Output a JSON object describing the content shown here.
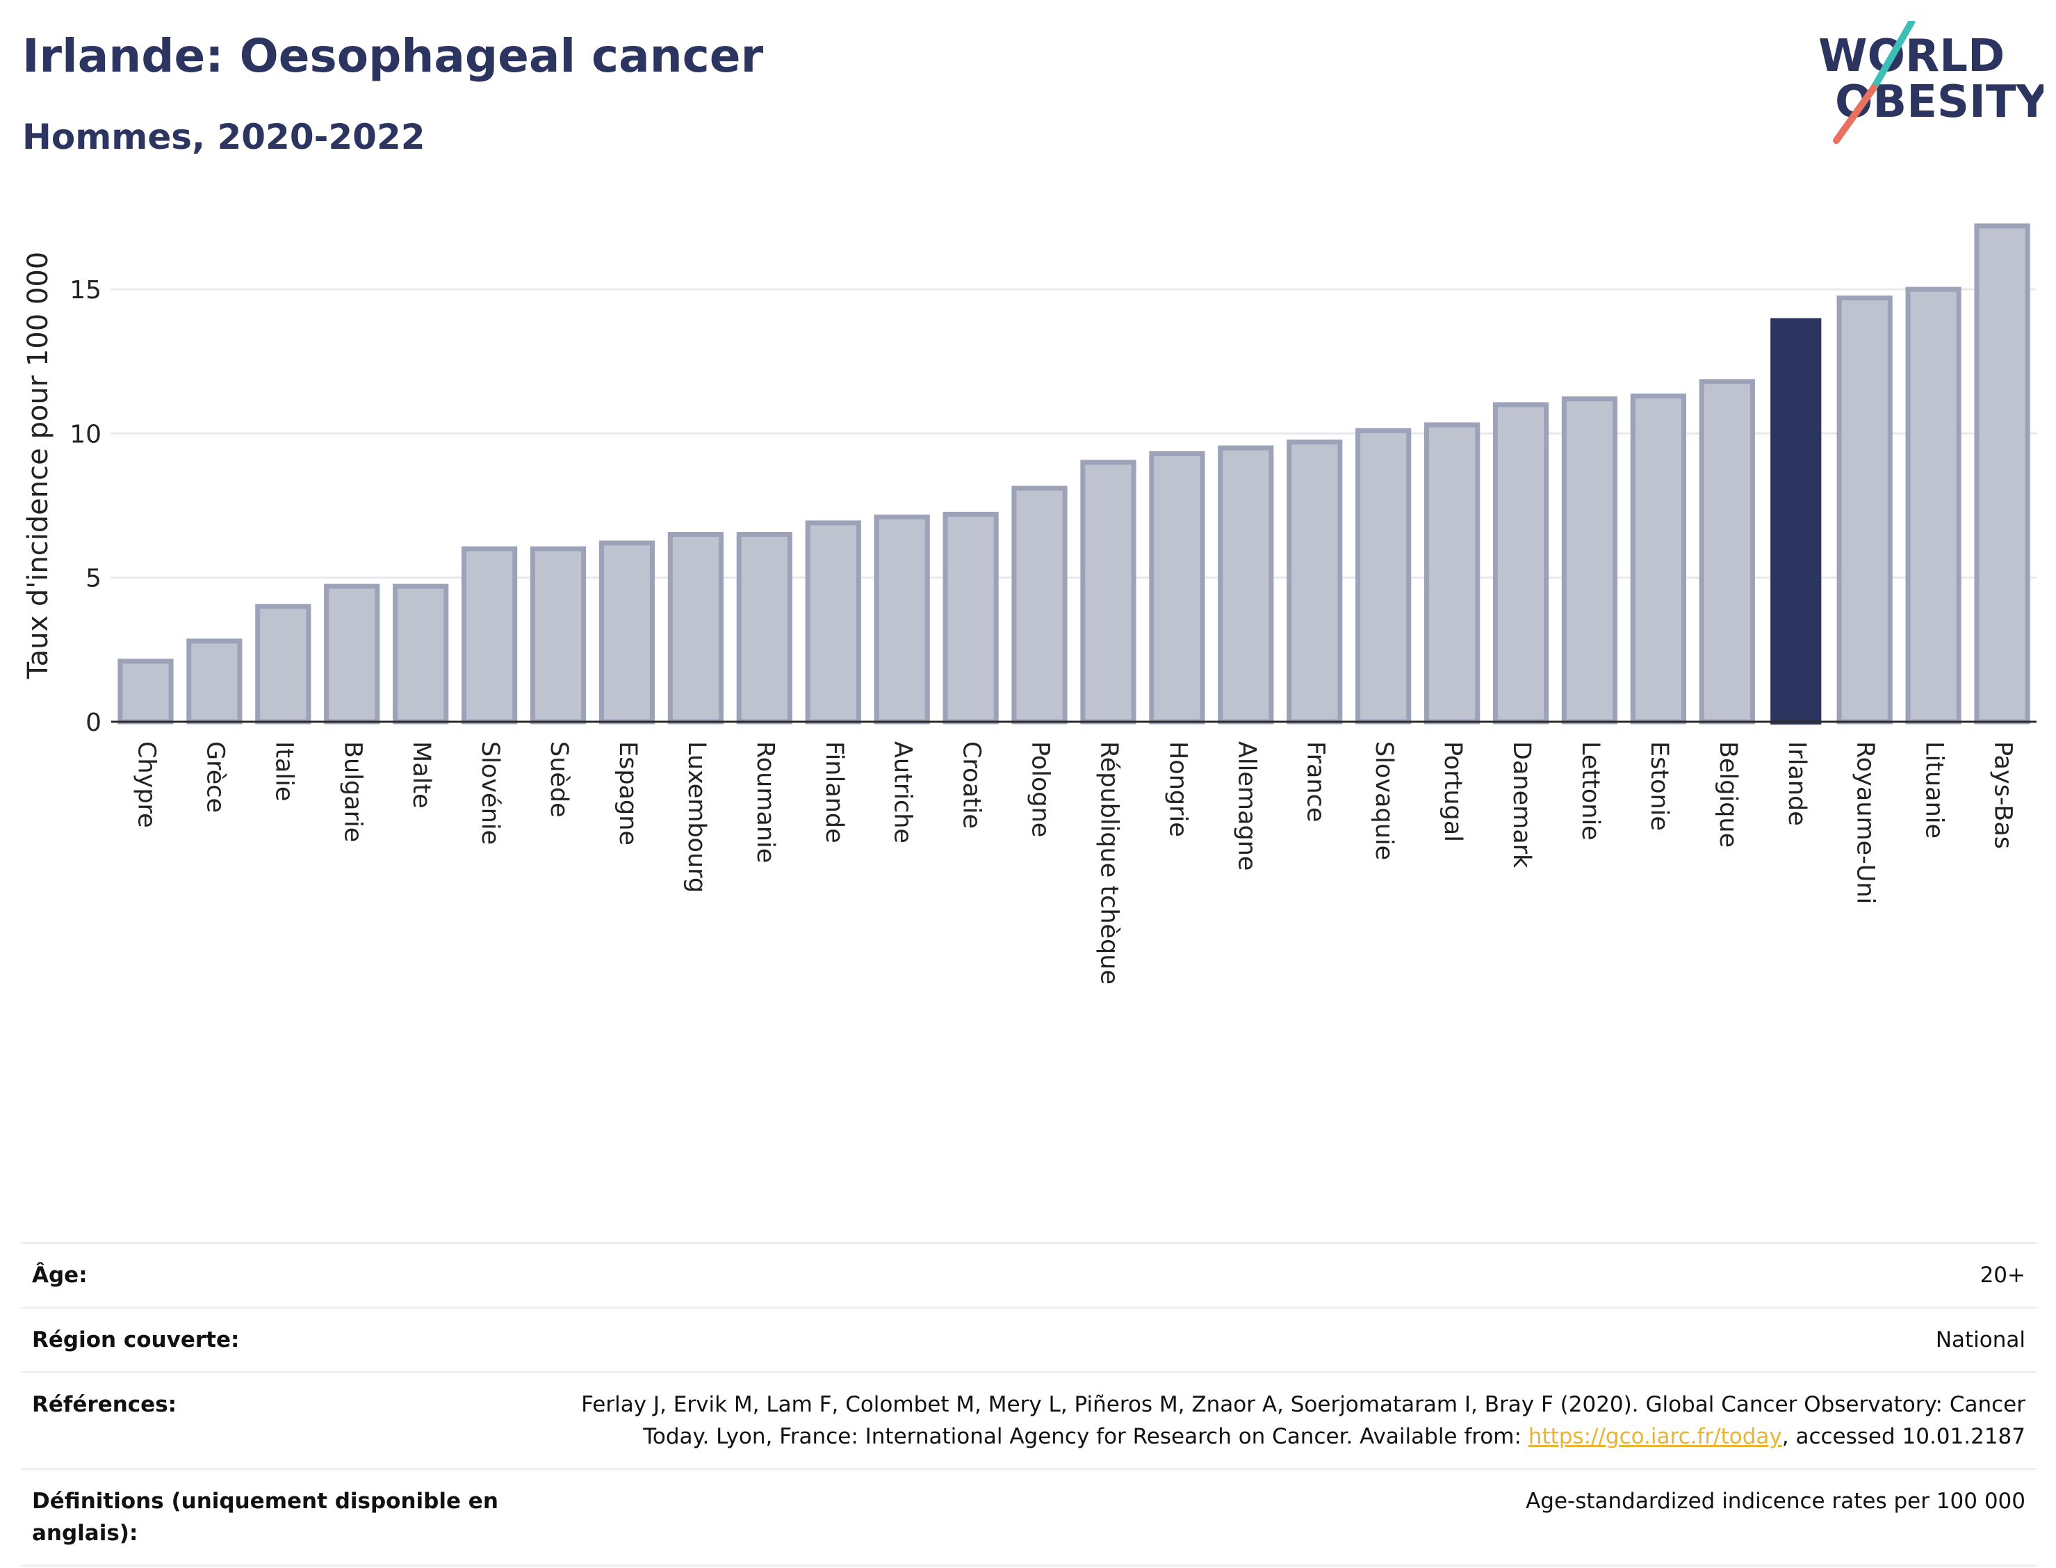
{
  "title": "Irlande: Oesophageal cancer",
  "subtitle": "Hommes, 2020-2022",
  "logo": {
    "line1": "WORLD",
    "line2": "OBESITY"
  },
  "colors": {
    "highlight": "#2b3560",
    "bar_fill": "#bfc3d0",
    "bar_stroke": "#9ca2b8",
    "grid": "#e8e9ee",
    "accent_teal": "#3dbfb8",
    "accent_coral": "#e8705f",
    "link": "#e8b432"
  },
  "chart_data": {
    "type": "bar",
    "title": "Irlande: Oesophageal cancer",
    "subtitle": "Hommes, 2020-2022",
    "ylabel": "Taux d'incidence pour 100 000",
    "xlabel": "",
    "ylim": [
      0,
      17.8
    ],
    "yticks": [
      0,
      5,
      10,
      15
    ],
    "grid": true,
    "highlight": "Irlande",
    "categories": [
      "Chypre",
      "Grèce",
      "Italie",
      "Bulgarie",
      "Malte",
      "Slovénie",
      "Suède",
      "Espagne",
      "Luxembourg",
      "Roumanie",
      "Finlande",
      "Autriche",
      "Croatie",
      "Pologne",
      "République tchèque",
      "Hongrie",
      "Allemagne",
      "France",
      "Slovaquie",
      "Portugal",
      "Danemark",
      "Lettonie",
      "Estonie",
      "Belgique",
      "Irlande",
      "Royaume-Uni",
      "Lituanie",
      "Pays-Bas"
    ],
    "values": [
      2.1,
      2.8,
      4.0,
      4.7,
      4.7,
      6.0,
      6.0,
      6.2,
      6.5,
      6.5,
      6.9,
      7.1,
      7.2,
      8.1,
      9.0,
      9.3,
      9.5,
      9.7,
      10.1,
      10.3,
      11.0,
      11.2,
      11.3,
      11.8,
      14.0,
      14.7,
      15.0,
      17.2
    ]
  },
  "meta": {
    "age_label": "Âge:",
    "age_value": "20+",
    "region_label": "Région couverte:",
    "region_value": "National",
    "refs_label": "Références:",
    "refs_text_1": "Ferlay J, Ervik M, Lam F, Colombet M, Mery L, Piñeros M, Znaor A, Soerjomataram I, Bray F (2020). Global Cancer Observatory: Cancer",
    "refs_text_2": "Today. Lyon, France: International Agency for Research on Cancer. Available from: ",
    "refs_link": "https://gco.iarc.fr/today",
    "refs_text_3": ", accessed 10.01.2187",
    "defs_label_1": "Définitions (uniquement disponible en",
    "defs_label_2": "anglais):",
    "defs_value": "Age-standardized indicence rates per 100 000"
  }
}
